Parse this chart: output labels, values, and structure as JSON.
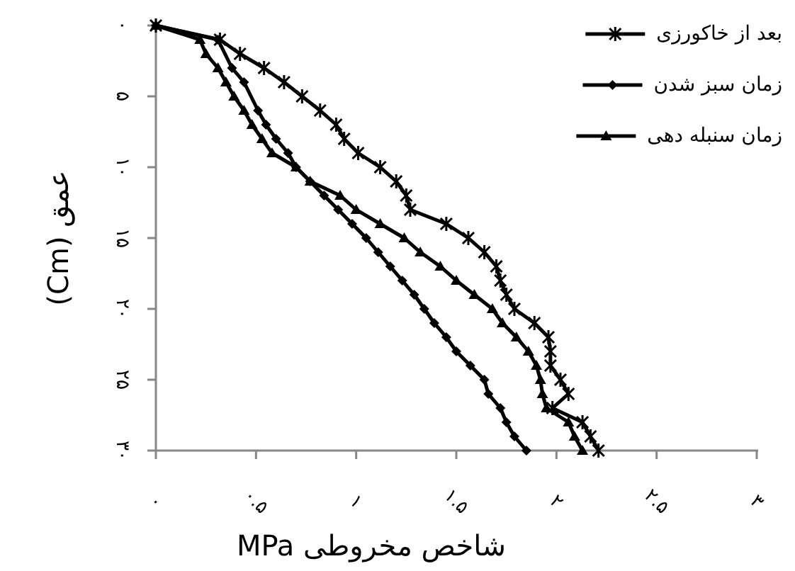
{
  "chart_data": {
    "type": "line",
    "xlabel": "شاخص مخروطی MPa",
    "ylabel": "عمق (Cm)",
    "xlim": [
      0,
      3
    ],
    "ylim": [
      30,
      0
    ],
    "xticks": [
      {
        "value": 0,
        "label": "۰"
      },
      {
        "value": 0.5,
        "label": "۰.۵"
      },
      {
        "value": 1,
        "label": "۱"
      },
      {
        "value": 1.5,
        "label": "۱.۵"
      },
      {
        "value": 2,
        "label": "۲"
      },
      {
        "value": 2.5,
        "label": "۲.۵"
      },
      {
        "value": 3,
        "label": "۳"
      }
    ],
    "yticks": [
      {
        "value": 0,
        "label": "۰"
      },
      {
        "value": 5,
        "label": "۵"
      },
      {
        "value": 10,
        "label": "۱۰"
      },
      {
        "value": 15,
        "label": "۱۵"
      },
      {
        "value": 20,
        "label": "۲۰"
      },
      {
        "value": 25,
        "label": "۲۵"
      },
      {
        "value": 30,
        "label": "۳۰"
      }
    ],
    "grid": false,
    "legend": "top right",
    "line_style": "solid",
    "series": [
      {
        "name": "بعد از خاکورزی",
        "color": "#000000",
        "marker": "cross",
        "x": [
          0,
          0.32,
          0.42,
          0.54,
          0.64,
          0.73,
          0.82,
          0.9,
          0.94,
          1.01,
          1.12,
          1.2,
          1.25,
          1.27,
          1.45,
          1.56,
          1.64,
          1.7,
          1.72,
          1.75,
          1.79,
          1.89,
          1.96,
          1.97,
          1.97,
          2.02,
          2.06,
          1.98,
          2.13,
          2.17,
          2.21
        ],
        "values": [
          0,
          1,
          2,
          3,
          4,
          5,
          6,
          7,
          8,
          9,
          10,
          11,
          12,
          13,
          14,
          15,
          16,
          17,
          18,
          19,
          20,
          21,
          22,
          23,
          24,
          25,
          26,
          27,
          28,
          29,
          30
        ]
      },
      {
        "name": "زمان سبز شدن",
        "color": "#000000",
        "marker": "diamond",
        "x": [
          0,
          0.31,
          0.38,
          0.44,
          0.51,
          0.55,
          0.6,
          0.66,
          0.7,
          0.77,
          0.84,
          0.91,
          0.98,
          1.05,
          1.11,
          1.17,
          1.23,
          1.29,
          1.34,
          1.39,
          1.45,
          1.5,
          1.57,
          1.64,
          1.66,
          1.72,
          1.75,
          1.79,
          1.85
        ],
        "values": [
          0,
          1,
          3,
          4,
          6,
          7,
          8,
          9,
          10,
          11,
          12,
          13,
          14,
          15,
          16,
          17,
          18,
          19,
          20,
          21,
          22,
          23,
          24,
          25,
          26,
          27,
          28,
          29,
          30
        ]
      },
      {
        "name": "زمان سنبله دهی",
        "color": "#000000",
        "marker": "triangle",
        "x": [
          0,
          0.22,
          0.25,
          0.31,
          0.35,
          0.39,
          0.44,
          0.48,
          0.53,
          0.58,
          0.7,
          0.77,
          0.92,
          1.0,
          1.12,
          1.24,
          1.32,
          1.42,
          1.5,
          1.59,
          1.68,
          1.73,
          1.8,
          1.86,
          1.9,
          1.92,
          1.93,
          1.95,
          2.06,
          2.09,
          2.13
        ],
        "values": [
          0,
          1,
          2,
          3,
          4,
          5,
          6,
          7,
          8,
          9,
          10,
          11,
          12,
          13,
          14,
          15,
          16,
          17,
          18,
          19,
          20,
          21,
          22,
          23,
          24,
          25,
          26,
          27,
          28,
          29,
          30
        ]
      }
    ]
  }
}
